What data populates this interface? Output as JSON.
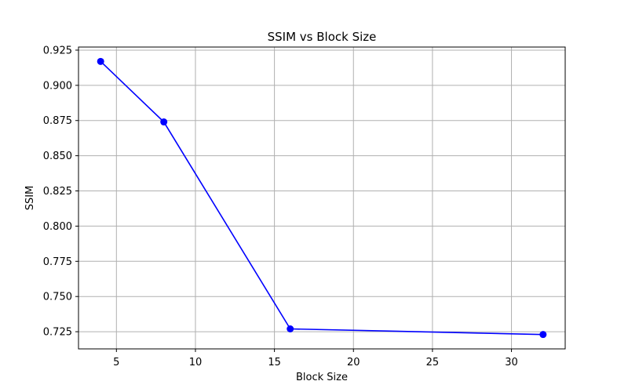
{
  "chart_data": {
    "type": "line",
    "title": "SSIM vs Block Size",
    "xlabel": "Block Size",
    "ylabel": "SSIM",
    "x": [
      4,
      8,
      16,
      32
    ],
    "series": [
      {
        "values": [
          0.917,
          0.874,
          0.727,
          0.723
        ],
        "color": "#0000ff",
        "marker": "circle"
      }
    ],
    "xlim": [
      2.6,
      33.4
    ],
    "ylim": [
      0.7128,
      0.9272
    ],
    "xticks": [
      5,
      10,
      15,
      20,
      25,
      30
    ],
    "yticks": [
      0.725,
      0.75,
      0.775,
      0.8,
      0.825,
      0.85,
      0.875,
      0.9,
      0.925
    ],
    "xtick_labels": [
      "5",
      "10",
      "15",
      "20",
      "25",
      "30"
    ],
    "ytick_labels": [
      "0.725",
      "0.750",
      "0.775",
      "0.800",
      "0.825",
      "0.850",
      "0.875",
      "0.900",
      "0.925"
    ],
    "grid": true,
    "legend": "none"
  }
}
